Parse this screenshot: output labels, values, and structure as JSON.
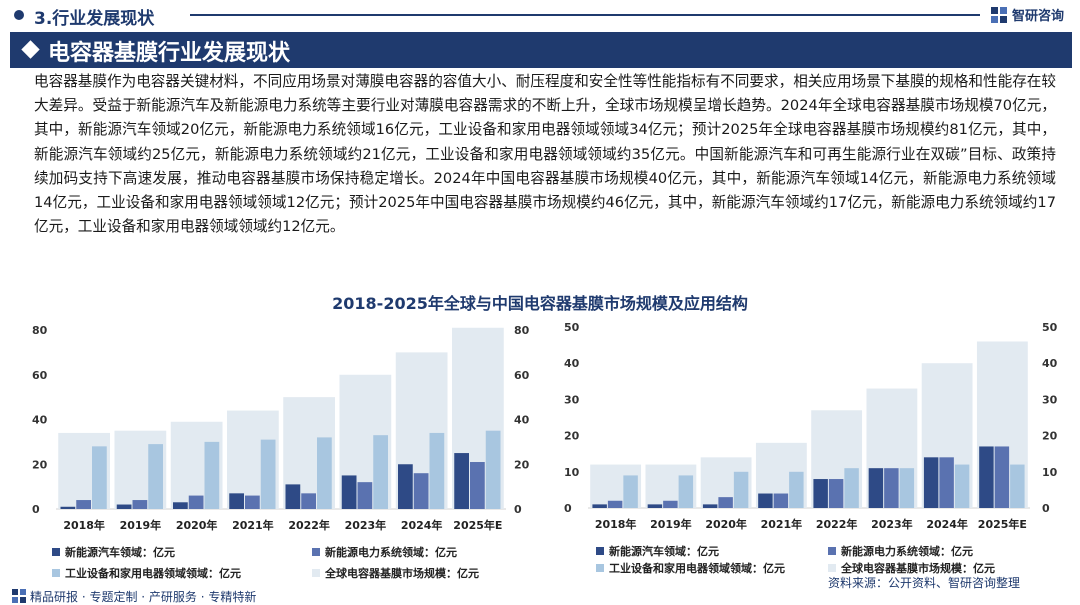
{
  "header": {
    "section_title": "3.行业发展现状",
    "brand": "智研咨询"
  },
  "banner": {
    "title": "电容器基膜行业发展现状"
  },
  "body_text": "电容器基膜作为电容器关键材料，不同应用场景对薄膜电容器的容值大小、耐压程度和安全性等性能指标有不同要求，相关应用场景下基膜的规格和性能存在较大差异。受益于新能源汽车及新能源电力系统等主要行业对薄膜电容器需求的不断上升，全球市场规模呈增长趋势。2024年全球电容器基膜市场规模70亿元，其中，新能源汽车领域20亿元，新能源电力系统领域16亿元，工业设备和家用电器领域领域34亿元；预计2025年全球电容器基膜市场规模约81亿元，其中，新能源汽车领域约25亿元，新能源电力系统领域约21亿元，工业设备和家用电器领域领域约35亿元。中国新能源汽车和可再生能源行业在双碳”目标、政策持续加码支持下高速发展，推动电容器基膜市场保持稳定增长。2024年中国电容器基膜市场规模40亿元，其中，新能源汽车领域14亿元，新能源电力系统领域14亿元，工业设备和家用电器领域领域12亿元；预计2025年中国电容器基膜市场规模约46亿元，其中，新能源汽车领域约17亿元，新能源电力系统领域约17亿元，工业设备和家用电器领域领域约12亿元。",
  "figure_title": "2018-2025年全球与中国电容器基膜市场规模及应用结构",
  "source_text": "资料来源：公开资料、智研咨询整理",
  "footer": {
    "text": "精品研报 · 专题定制 · 产研服务 · 专精特新"
  },
  "colors": {
    "navy": "#1f3a6e",
    "ev": "#2e4a86",
    "power": "#5a72b0",
    "industrial": "#a8c6e0",
    "total": "#e2eaf1"
  },
  "chart_data": [
    {
      "type": "bar",
      "title": "全球",
      "categories": [
        "2018年",
        "2019年",
        "2020年",
        "2021年",
        "2022年",
        "2023年",
        "2024年",
        "2025年E"
      ],
      "ylim": [
        0,
        80
      ],
      "yticks": [
        0,
        20,
        40,
        60,
        80
      ],
      "series": [
        {
          "name": "新能源汽车领域：亿元",
          "values": [
            1,
            2,
            3,
            7,
            11,
            15,
            20,
            25
          ]
        },
        {
          "name": "新能源电力系统领域：亿元",
          "values": [
            4,
            4,
            6,
            6,
            7,
            12,
            16,
            21
          ]
        },
        {
          "name": "工业设备和家用电器领域领域：亿元",
          "values": [
            28,
            29,
            30,
            31,
            32,
            33,
            34,
            35
          ]
        },
        {
          "name": "全球电容器基膜市场规模：亿元",
          "values": [
            34,
            35,
            39,
            44,
            50,
            60,
            70,
            81
          ]
        }
      ]
    },
    {
      "type": "bar",
      "title": "中国",
      "categories": [
        "2018年",
        "2019年",
        "2020年",
        "2021年",
        "2022年",
        "2023年",
        "2024年",
        "2025年E"
      ],
      "ylim": [
        0,
        50
      ],
      "yticks": [
        0,
        10,
        20,
        30,
        40,
        50
      ],
      "series": [
        {
          "name": "新能源汽车领域：亿元",
          "values": [
            1,
            1,
            1,
            4,
            8,
            11,
            14,
            17
          ]
        },
        {
          "name": "新能源电力系统领域：亿元",
          "values": [
            2,
            2,
            3,
            4,
            8,
            11,
            14,
            17
          ]
        },
        {
          "name": "工业设备和家用电器领域领域：亿元",
          "values": [
            9,
            9,
            10,
            10,
            11,
            11,
            12,
            12
          ]
        },
        {
          "name": "全球电容器基膜市场规模：亿元",
          "values": [
            12,
            12,
            14,
            18,
            27,
            33,
            40,
            46
          ]
        }
      ]
    }
  ]
}
